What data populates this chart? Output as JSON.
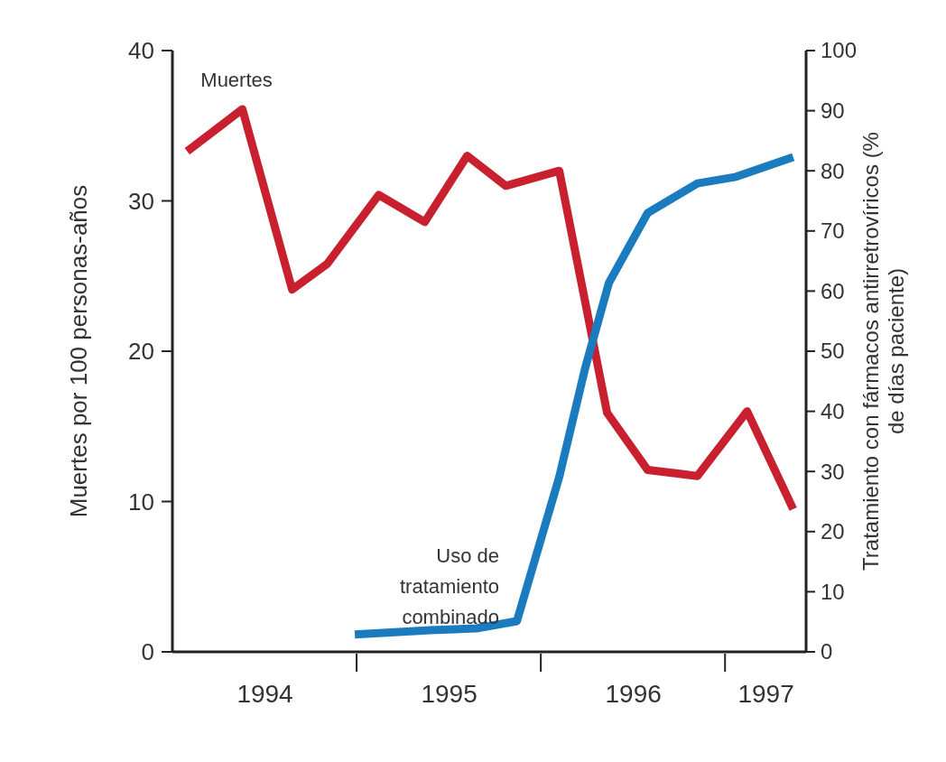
{
  "chart_data": {
    "type": "line",
    "xlabel": null,
    "ylabel": "Muertes por 100 personas-años",
    "y2label": "Tratamiento con fármacos antirretrovíricos (% de días paciente)",
    "xlim": [
      1994,
      1997.44
    ],
    "xticks": [
      {
        "value": 1994.5,
        "label": "1994"
      },
      {
        "value": 1995.5,
        "label": "1995"
      },
      {
        "value": 1996.5,
        "label": "1996"
      },
      {
        "value": 1997.22,
        "label": "1997"
      }
    ],
    "ylim": [
      0,
      40
    ],
    "yticks": [
      0,
      10,
      20,
      30,
      40
    ],
    "y2lim": [
      0,
      100
    ],
    "y2ticks": [
      0,
      10,
      20,
      30,
      40,
      50,
      60,
      70,
      80,
      90,
      100
    ],
    "grid": false,
    "line_style": "solid",
    "marker": "none",
    "series": [
      {
        "name": "Muertes",
        "color": "#c8202e",
        "x": [
          1994.08,
          1994.38,
          1994.65,
          1994.84,
          1995.12,
          1995.37,
          1995.6,
          1995.81,
          1996.1,
          1996.36,
          1996.58,
          1996.85,
          1997.12,
          1997.37
        ],
        "values": [
          33.3,
          36.1,
          24.1,
          25.8,
          30.4,
          28.6,
          33.0,
          31.0,
          32.0,
          15.9,
          12.1,
          11.7,
          16.0,
          9.5
        ]
      },
      {
        "name": "Uso de tratamiento combinado",
        "color": "#1b7bbf",
        "axis": "y2",
        "x": [
          1994.99,
          1995.4,
          1995.65,
          1995.87,
          1996.1,
          1996.24,
          1996.37,
          1996.58,
          1996.85,
          1997.06,
          1997.37
        ],
        "values": [
          2.9,
          3.6,
          3.9,
          5.1,
          29.1,
          47.1,
          61.4,
          73.0,
          77.9,
          79.0,
          82.3
        ]
      }
    ]
  }
}
